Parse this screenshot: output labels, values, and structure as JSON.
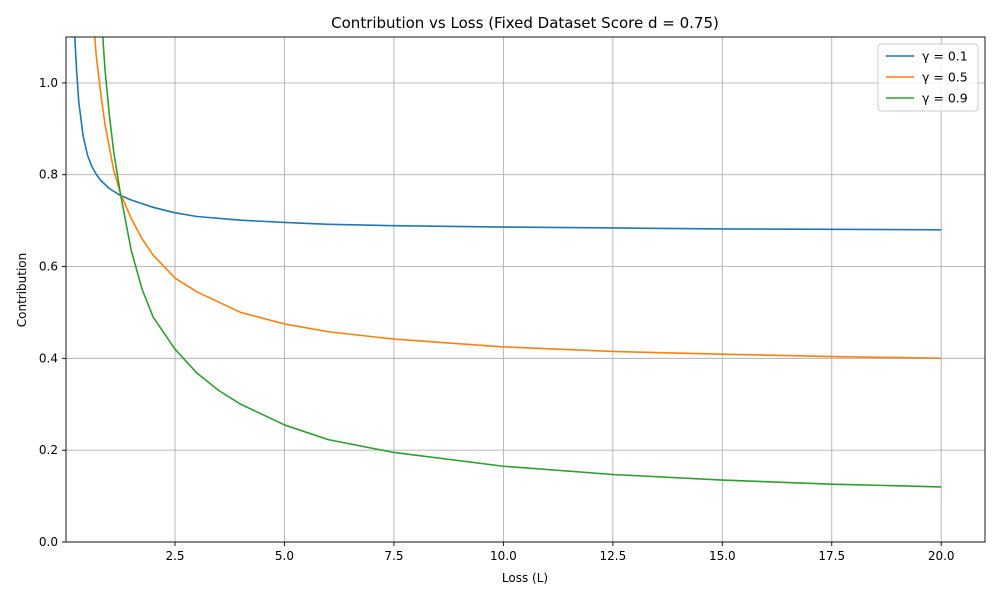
{
  "chart_data": {
    "type": "line",
    "title": "Contribution vs Loss (Fixed Dataset Score d = 0.75)",
    "xlabel": "Loss (L)",
    "ylabel": "Contribution",
    "xlim": [
      0.01,
      21.0
    ],
    "ylim": [
      0.0,
      1.1
    ],
    "xticks": [
      2.5,
      5.0,
      7.5,
      10.0,
      12.5,
      15.0,
      17.5,
      20.0
    ],
    "xtick_labels": [
      "2.5",
      "5.0",
      "7.5",
      "10.0",
      "12.5",
      "15.0",
      "17.5",
      "20.0"
    ],
    "yticks": [
      0.0,
      0.2,
      0.4,
      0.6,
      0.8,
      1.0
    ],
    "ytick_labels": [
      "0.0",
      "0.2",
      "0.4",
      "0.6",
      "0.8",
      "1.0"
    ],
    "grid": true,
    "legend_position": "top-right",
    "series": [
      {
        "name": "γ = 0.1",
        "color": "#1f77b4",
        "x": [
          0.2,
          0.25,
          0.3,
          0.4,
          0.5,
          0.6,
          0.7,
          0.8,
          1.0,
          1.25,
          1.5,
          2.0,
          2.5,
          3.0,
          4.0,
          5.0,
          6.0,
          7.5,
          10.0,
          12.5,
          15.0,
          17.5,
          20.0
        ],
        "y": [
          1.12,
          1.03,
          0.96,
          0.885,
          0.843,
          0.818,
          0.801,
          0.788,
          0.77,
          0.755,
          0.745,
          0.729,
          0.717,
          0.709,
          0.701,
          0.696,
          0.692,
          0.689,
          0.686,
          0.684,
          0.682,
          0.681,
          0.68
        ]
      },
      {
        "name": "γ = 0.5",
        "color": "#ff7f0e",
        "x": [
          0.65,
          0.7,
          0.8,
          0.9,
          1.0,
          1.1,
          1.25,
          1.5,
          1.75,
          2.0,
          2.5,
          3.0,
          4.0,
          5.0,
          6.0,
          7.5,
          10.0,
          12.5,
          15.0,
          17.5,
          20.0
        ],
        "y": [
          1.12,
          1.06,
          0.98,
          0.91,
          0.86,
          0.81,
          0.76,
          0.705,
          0.66,
          0.625,
          0.575,
          0.545,
          0.5,
          0.475,
          0.458,
          0.442,
          0.425,
          0.415,
          0.409,
          0.404,
          0.4
        ]
      },
      {
        "name": "γ = 0.9",
        "color": "#2ca02c",
        "x": [
          0.85,
          0.9,
          1.0,
          1.1,
          1.25,
          1.5,
          1.75,
          2.0,
          2.5,
          3.0,
          3.5,
          4.0,
          5.0,
          6.0,
          7.5,
          10.0,
          12.5,
          15.0,
          17.5,
          20.0
        ],
        "y": [
          1.1,
          1.03,
          0.93,
          0.85,
          0.76,
          0.635,
          0.55,
          0.49,
          0.42,
          0.368,
          0.33,
          0.3,
          0.255,
          0.223,
          0.195,
          0.165,
          0.147,
          0.135,
          0.126,
          0.12
        ]
      }
    ]
  }
}
